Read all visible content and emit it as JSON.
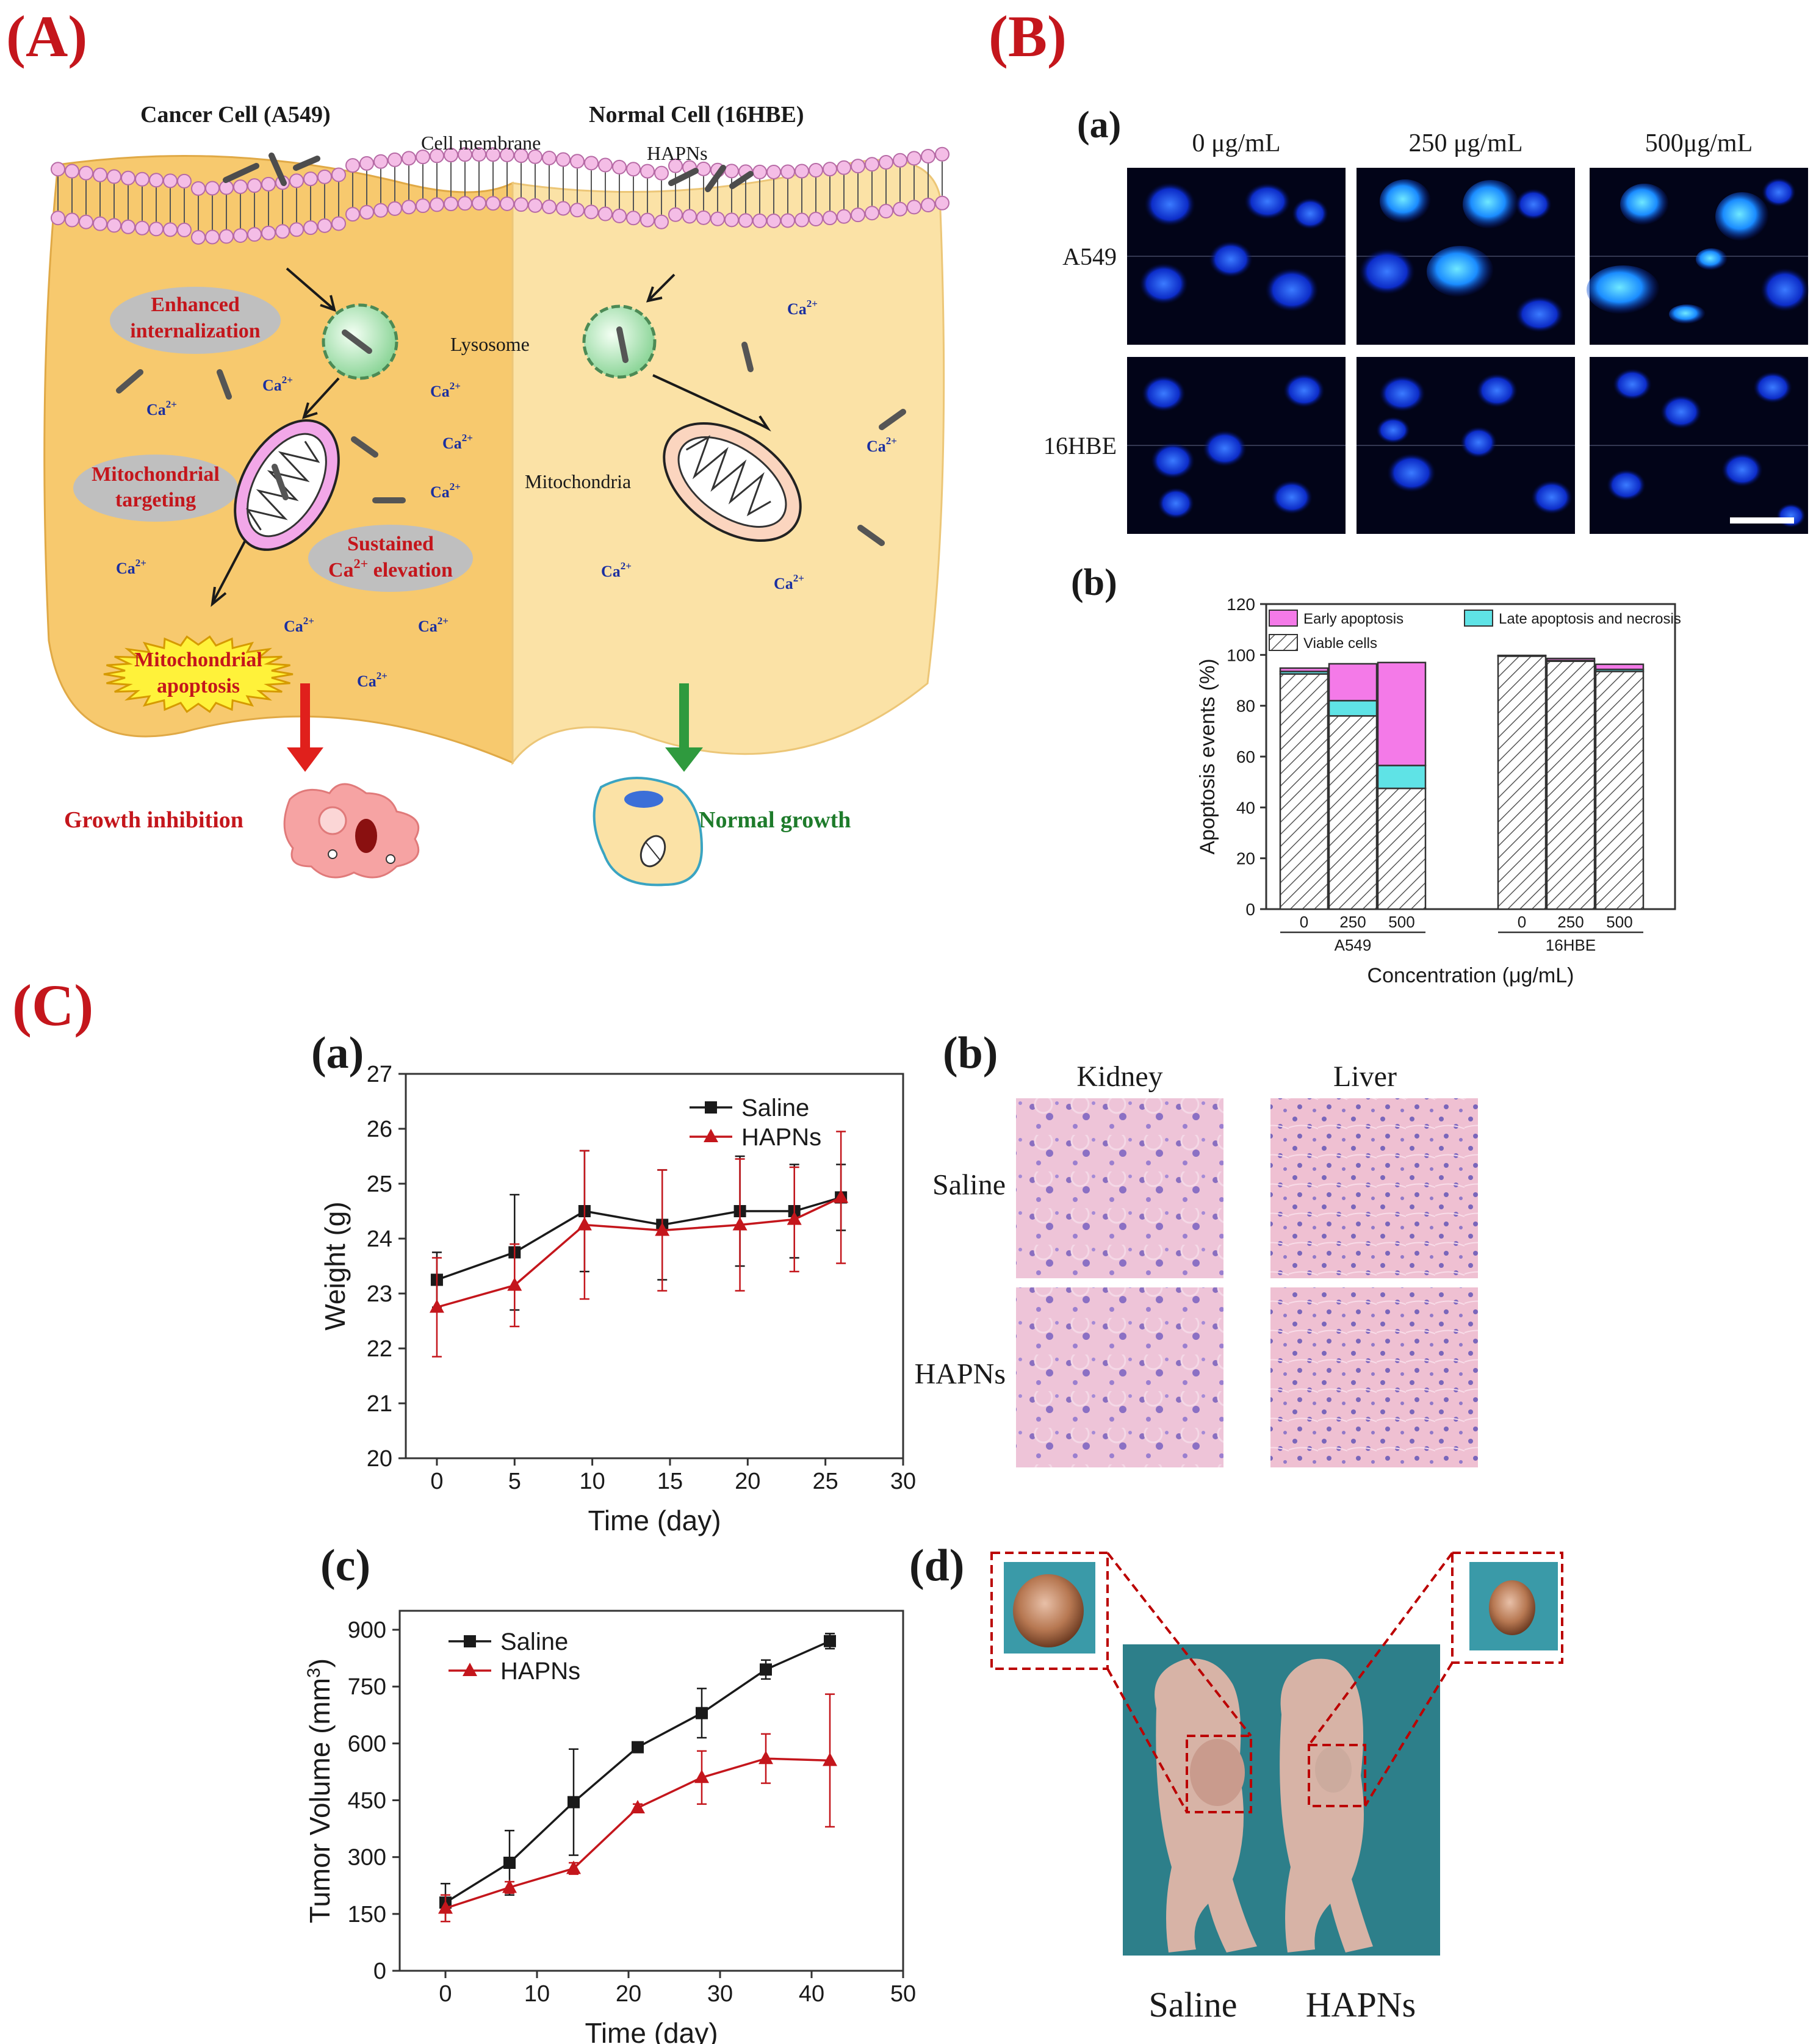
{
  "panels": {
    "A": "(A)",
    "B": "(B)",
    "C": "(C)",
    "Ba": "(a)",
    "Bb": "(b)",
    "Ca": "(a)",
    "Cb": "(b)",
    "Cc": "(c)",
    "Cd": "(d)"
  },
  "schematic": {
    "cancer_cell": "Cancer Cell (A549)",
    "normal_cell": "Normal Cell (16HBE)",
    "cell_membrane": "Cell membrane",
    "hapns": "HAPNs",
    "lysosome": "Lysosome",
    "mitochondria": "Mitochondria",
    "enhanced": [
      "Enhanced",
      "internalization"
    ],
    "mito_target": [
      "Mitochondrial",
      "targeting"
    ],
    "sustained": [
      "Sustained",
      "Ca",
      "2+",
      " elevation"
    ],
    "apoptosis": [
      "Mitochondrial",
      "apoptosis"
    ],
    "growth_inhibition": "Growth inhibition",
    "normal_growth": "Normal growth",
    "ca_base": "Ca",
    "ca_sup": "2+",
    "colors": {
      "red_text": "#c4161c",
      "green_text": "#1e7b2b",
      "cancer_fill": "#f7c96e",
      "normal_fill": "#fbe2a6"
    }
  },
  "micro": {
    "col_labels": [
      "0 μg/mL",
      "250 μg/mL",
      "500μg/mL"
    ],
    "row_labels": [
      "A549",
      "16HBE"
    ]
  },
  "apoptosis_chart": {
    "ylabel": "Apoptosis events (%)",
    "xlabel": "Concentration (μg/mL)",
    "yticks": [
      "0",
      "20",
      "40",
      "60",
      "80",
      "100",
      "120"
    ],
    "legend": [
      "Early apoptosis",
      "Late apoptosis and necrosis",
      "Viable cells"
    ],
    "group_labels": [
      "A549",
      "16HBE"
    ],
    "conc_labels": [
      "0",
      "250",
      "500",
      "0",
      "250",
      "500"
    ]
  },
  "histology": {
    "col_labels": [
      "Kidney",
      "Liver"
    ],
    "row_labels": [
      "Saline",
      "HAPNs"
    ]
  },
  "mice": {
    "labels": [
      "Saline",
      "HAPNs"
    ]
  },
  "chart_data": [
    {
      "type": "bar",
      "stacked": true,
      "ylabel": "Apoptosis events (%)",
      "xlabel": "Concentration (μg/mL)",
      "ylim": [
        0,
        120
      ],
      "groups": [
        "A549",
        "16HBE"
      ],
      "categories": [
        "0",
        "250",
        "500",
        "0",
        "250",
        "500"
      ],
      "series": [
        {
          "name": "Viable cells",
          "values": [
            92.5,
            76,
            47.5,
            99.5,
            97.5,
            93.5
          ]
        },
        {
          "name": "Late apoptosis and necrosis",
          "values": [
            1.0,
            6.0,
            9.0,
            0.2,
            0.3,
            0.8
          ]
        },
        {
          "name": "Early apoptosis",
          "values": [
            1.3,
            14.5,
            40.5,
            0.1,
            0.8,
            2.0
          ]
        }
      ],
      "legend_position": "top"
    },
    {
      "type": "line",
      "xlabel": "Time (day)",
      "ylabel": "Weight (g)",
      "xlim": [
        -2,
        30
      ],
      "ylim": [
        20,
        27
      ],
      "xticks": [
        "0",
        "5",
        "10",
        "15",
        "20",
        "25",
        "30"
      ],
      "yticks": [
        "20",
        "21",
        "22",
        "23",
        "24",
        "25",
        "26",
        "27"
      ],
      "x": [
        0,
        5,
        9.5,
        14.5,
        19.5,
        23,
        26
      ],
      "series": [
        {
          "name": "Saline",
          "values": [
            23.25,
            23.75,
            24.5,
            24.25,
            24.5,
            24.5,
            24.75
          ],
          "errors": [
            0.5,
            1.05,
            1.1,
            1.0,
            1.0,
            0.85,
            0.6
          ],
          "color": "#1a1a1a"
        },
        {
          "name": "HAPNs",
          "values": [
            22.75,
            23.15,
            24.25,
            24.15,
            24.25,
            24.35,
            24.75
          ],
          "errors": [
            0.9,
            0.75,
            1.35,
            1.1,
            1.2,
            0.95,
            1.2
          ],
          "color": "#c4161c"
        }
      ],
      "legend_position": "top-right"
    },
    {
      "type": "line",
      "xlabel": "Time (day)",
      "ylabel": "Tumor Volume (mm3)",
      "xlim": [
        -5,
        50
      ],
      "ylim": [
        0,
        950
      ],
      "xticks": [
        "0",
        "10",
        "20",
        "30",
        "40",
        "50"
      ],
      "yticks": [
        "0",
        "150",
        "300",
        "450",
        "600",
        "750",
        "900"
      ],
      "x": [
        0,
        7,
        14,
        21,
        28,
        35,
        42
      ],
      "series": [
        {
          "name": "Saline",
          "values": [
            180,
            285,
            445,
            590,
            680,
            795,
            870
          ],
          "errors": [
            50,
            85,
            140,
            10,
            65,
            25,
            20
          ],
          "color": "#1a1a1a"
        },
        {
          "name": "HAPNs",
          "values": [
            165,
            220,
            270,
            430,
            510,
            560,
            555
          ],
          "errors": [
            35,
            15,
            15,
            10,
            70,
            65,
            175
          ],
          "color": "#c4161c"
        }
      ],
      "legend_position": "top-left"
    }
  ]
}
